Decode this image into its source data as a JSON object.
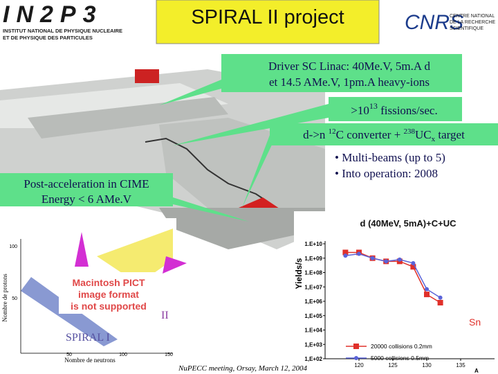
{
  "header": {
    "logo_left": "IN2P3",
    "logo_left_sub1": "INSTITUT NATIONAL DE PHYSIQUE NUCLEAIRE",
    "logo_left_sub2": "ET DE PHYSIQUE DES PARTICULES",
    "title": "SPIRAL II  project",
    "logo_right": "CNRS",
    "logo_right_sub": [
      "CENTRE NATIONAL",
      "DE LA RECHERCHE",
      "SCIENTIFIQUE"
    ]
  },
  "boxes": {
    "driver": [
      "Driver SC Linac: 40Me.V, 5m.A d",
      "et 14.5 AMe.V, 1pm.A heavy-ions"
    ],
    "fissions": [
      ">10",
      "13",
      " fissions/sec."
    ],
    "converter": [
      "d->n ",
      "12",
      "C converter + ",
      "238",
      "UC",
      "x",
      " target"
    ],
    "bullets": [
      "• Multi-beams (up to 5)",
      "• Into operation: 2008"
    ],
    "post": [
      "Post-acceleration in CIME",
      "Energy < 6 AMe.V"
    ]
  },
  "figure": {
    "pict": [
      "Macintosh PICT",
      "image format",
      "is not supported"
    ],
    "spiral1": "SPIRAL I",
    "spiral2": "II",
    "ylabel": "Nombre de protons",
    "xlabel": "Nombre de neutrons",
    "yticks": [
      "100",
      "50"
    ],
    "xticks": [
      "50",
      "100",
      "150"
    ]
  },
  "footer": "NuPECC meeting, Orsay, March 12, 2004",
  "chart_data": {
    "type": "line",
    "title": "d (40MeV,  5mA)+C+UC",
    "y_label": "Yields/s",
    "x_label": "A",
    "annotation": "Sn",
    "x": [
      118,
      120,
      122,
      124,
      126,
      128,
      130,
      132
    ],
    "series": [
      {
        "name": "20000  collisions  0.2mm",
        "color": "#e0302a",
        "marker": "square",
        "values": [
          2500000000,
          2500000000,
          1000000000,
          600000000,
          600000000,
          250000000,
          3000000,
          800000
        ]
      },
      {
        "name": "5000  collisions  0.5mm",
        "color": "#5a63d8",
        "marker": "circle",
        "values": [
          1500000000,
          2000000000,
          1000000000,
          600000000,
          800000000,
          450000000,
          7000000,
          1800000
        ]
      }
    ],
    "xlim": [
      115,
      140
    ],
    "xticks": [
      120,
      125,
      130,
      135
    ],
    "ylim": [
      100,
      10000000000
    ],
    "log_y": true,
    "yticks": [
      {
        "value": 10000000000,
        "label": "1.E+10"
      },
      {
        "value": 1000000000,
        "label": "1,E+09"
      },
      {
        "value": 100000000,
        "label": "1.E+08"
      },
      {
        "value": 10000000,
        "label": "1,E+07"
      },
      {
        "value": 1000000,
        "label": "1,E+06"
      },
      {
        "value": 100000,
        "label": "1,E+05"
      },
      {
        "value": 10000,
        "label": "1.E+04"
      },
      {
        "value": 1000,
        "label": "1,E+03"
      },
      {
        "value": 100,
        "label": "1,E+02"
      }
    ]
  }
}
